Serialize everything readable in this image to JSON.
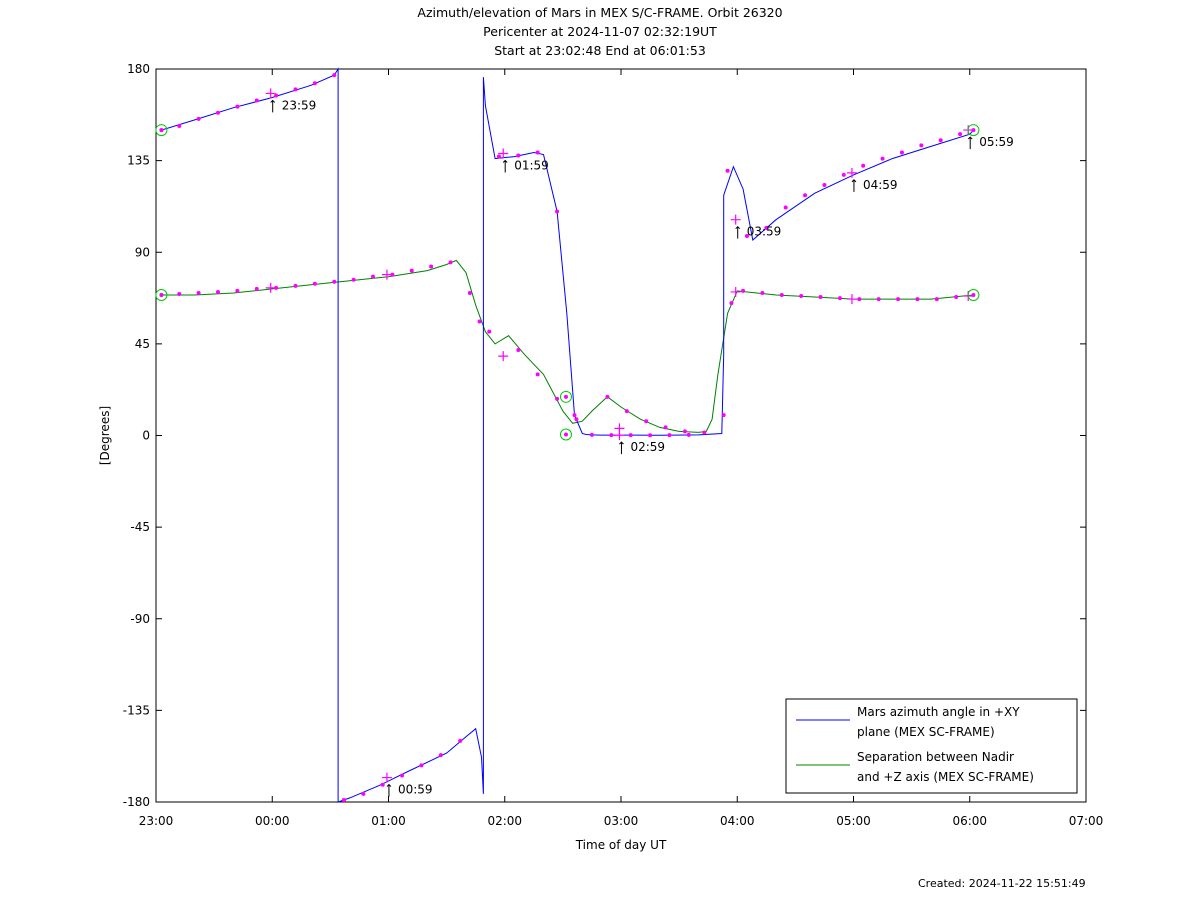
{
  "title_lines": [
    "Azimuth/elevation of Mars in MEX S/C-FRAME.  Orbit 26320",
    "Pericenter at 2024-11-07 02:32:19UT",
    "Start at 23:02:48 End at 06:01:53"
  ],
  "created": "Created: 2024-11-22 15:51:49",
  "chart_data": {
    "type": "line",
    "xlabel": "Time of day UT",
    "ylabel": "[Degrees]",
    "xlim": [
      0,
      480
    ],
    "ylim": [
      -180,
      180
    ],
    "x_ticks": [
      {
        "v": 0,
        "label": "23:00"
      },
      {
        "v": 60,
        "label": "00:00"
      },
      {
        "v": 120,
        "label": "01:00"
      },
      {
        "v": 180,
        "label": "02:00"
      },
      {
        "v": 240,
        "label": "03:00"
      },
      {
        "v": 300,
        "label": "04:00"
      },
      {
        "v": 360,
        "label": "05:00"
      },
      {
        "v": 420,
        "label": "06:00"
      },
      {
        "v": 480,
        "label": "07:00"
      }
    ],
    "y_ticks": [
      {
        "v": 180,
        "label": "180"
      },
      {
        "v": 135,
        "label": "135"
      },
      {
        "v": 90,
        "label": "90"
      },
      {
        "v": 45,
        "label": "45"
      },
      {
        "v": 0,
        "label": "0"
      },
      {
        "v": -45,
        "label": "-45"
      },
      {
        "v": -90,
        "label": "-90"
      },
      {
        "v": -135,
        "label": "-135"
      },
      {
        "v": -180,
        "label": "-180"
      }
    ],
    "series": [
      {
        "name": "Mars azimuth angle in +XY plane (MEX SC-FRAME)",
        "legend_lines": [
          "Mars azimuth angle in +XY",
          "plane (MEX SC-FRAME)"
        ],
        "color": "#0000ff",
        "x": [
          2.8,
          20,
          40,
          60,
          80,
          92,
          94,
          94,
          100,
          115,
          130,
          150,
          160,
          165,
          168,
          169,
          169,
          170,
          175,
          185,
          195,
          200,
          207,
          212,
          216,
          220,
          222,
          225,
          230,
          240,
          260,
          280,
          292,
          293,
          293,
          298,
          303,
          308,
          320,
          340,
          360,
          380,
          400,
          420,
          421.9
        ],
        "y": [
          150,
          155,
          161,
          166,
          172,
          177,
          180,
          -180,
          -178,
          -172,
          -165,
          -156,
          -148,
          -144,
          -158,
          -176,
          176,
          162,
          136,
          137,
          139,
          138,
          110,
          60,
          10,
          1,
          0.5,
          0.3,
          0.2,
          0.2,
          0.1,
          0.3,
          1,
          40,
          118,
          132,
          121,
          96,
          106,
          119,
          128,
          136,
          142,
          148,
          150
        ]
      },
      {
        "name": "Separation between Nadir and +Z axis (MEX SC-FRAME)",
        "legend_lines": [
          "Separation between Nadir",
          "and +Z axis (MEX SC-FRAME)"
        ],
        "color": "#008000",
        "x": [
          2.8,
          20,
          40,
          60,
          80,
          100,
          120,
          140,
          150,
          155,
          160,
          165,
          170,
          175,
          182,
          190,
          200,
          210,
          215,
          220,
          225,
          233,
          240,
          250,
          260,
          270,
          280,
          284,
          287,
          290,
          295,
          300,
          310,
          320,
          340,
          360,
          380,
          400,
          421.9
        ],
        "y": [
          69,
          69,
          70,
          72,
          74,
          76,
          78,
          81,
          84,
          86,
          80,
          64,
          51,
          45,
          49,
          40,
          30,
          12,
          6,
          7,
          12,
          19,
          14,
          8,
          4,
          2,
          1.5,
          2,
          8,
          30,
          60,
          71,
          70,
          69,
          68,
          67,
          67,
          67,
          69
        ]
      }
    ],
    "markers": {
      "azimuth_dots": [
        [
          2.8,
          150
        ],
        [
          12,
          152
        ],
        [
          22,
          155.5
        ],
        [
          32,
          158.5
        ],
        [
          42,
          161.5
        ],
        [
          52,
          164.5
        ],
        [
          62,
          167
        ],
        [
          72,
          170
        ],
        [
          82,
          173
        ],
        [
          92,
          177
        ],
        [
          97,
          -179
        ],
        [
          107,
          -176
        ],
        [
          117,
          -171.5
        ],
        [
          127,
          -167
        ],
        [
          137,
          -162
        ],
        [
          147,
          -157
        ],
        [
          157,
          -150
        ],
        [
          177,
          137
        ],
        [
          187,
          137.5
        ],
        [
          197,
          139
        ],
        [
          207,
          110
        ],
        [
          216,
          10
        ],
        [
          225,
          0.3
        ],
        [
          235,
          0.2
        ],
        [
          245,
          0.2
        ],
        [
          255,
          0.1
        ],
        [
          265,
          0.2
        ],
        [
          275,
          0.3
        ],
        [
          295,
          130
        ],
        [
          305,
          98
        ],
        [
          315,
          102
        ],
        [
          325,
          112
        ],
        [
          335,
          118
        ],
        [
          345,
          123
        ],
        [
          355,
          128
        ],
        [
          365,
          132.5
        ],
        [
          375,
          136
        ],
        [
          385,
          139
        ],
        [
          395,
          142.5
        ],
        [
          405,
          145
        ],
        [
          415,
          148
        ]
      ],
      "azimuth_crosses": [
        [
          59.2,
          168
        ],
        [
          119.2,
          -168
        ],
        [
          179.2,
          138.5
        ],
        [
          239.2,
          0.2
        ],
        [
          299.2,
          106
        ],
        [
          359.2,
          129
        ],
        [
          419.2,
          150
        ]
      ],
      "separation_dots": [
        [
          2.8,
          69
        ],
        [
          12,
          69.5
        ],
        [
          22,
          70
        ],
        [
          32,
          70.5
        ],
        [
          42,
          71
        ],
        [
          52,
          72
        ],
        [
          62,
          72.5
        ],
        [
          72,
          73.5
        ],
        [
          82,
          74.5
        ],
        [
          92,
          75.5
        ],
        [
          102,
          76.5
        ],
        [
          112,
          78
        ],
        [
          122,
          79
        ],
        [
          132,
          81
        ],
        [
          142,
          83
        ],
        [
          152,
          85
        ],
        [
          162,
          70
        ],
        [
          167,
          56
        ],
        [
          172,
          51
        ],
        [
          187,
          42
        ],
        [
          197,
          30
        ],
        [
          207,
          18
        ],
        [
          217,
          8
        ],
        [
          233,
          19
        ],
        [
          243,
          12
        ],
        [
          253,
          7
        ],
        [
          263,
          4
        ],
        [
          273,
          2
        ],
        [
          283,
          1.5
        ],
        [
          293,
          10
        ],
        [
          297,
          65
        ],
        [
          303,
          71
        ],
        [
          313,
          70
        ],
        [
          323,
          69
        ],
        [
          333,
          68.5
        ],
        [
          343,
          68
        ],
        [
          353,
          67.5
        ],
        [
          363,
          67
        ],
        [
          373,
          67
        ],
        [
          383,
          67
        ],
        [
          393,
          67
        ],
        [
          403,
          67
        ],
        [
          413,
          68
        ]
      ],
      "separation_crosses": [
        [
          59.2,
          72.5
        ],
        [
          119.2,
          79
        ],
        [
          179.2,
          39
        ],
        [
          239.2,
          3.5
        ],
        [
          299.2,
          70.5
        ],
        [
          359.2,
          67
        ],
        [
          419.2,
          68.5
        ]
      ],
      "circles": [
        [
          2.8,
          150
        ],
        [
          2.8,
          69
        ],
        [
          421.9,
          150
        ],
        [
          421.9,
          69
        ],
        [
          211.6,
          0.5
        ],
        [
          211.6,
          19
        ]
      ],
      "hour_labels": [
        {
          "x": 59.2,
          "y": 168,
          "label": "23:59"
        },
        {
          "x": 119.2,
          "y": -168,
          "label": "00:59"
        },
        {
          "x": 179.2,
          "y": 138.5,
          "label": "01:59"
        },
        {
          "x": 239.2,
          "y": 0.2,
          "label": "02:59"
        },
        {
          "x": 299.2,
          "y": 106,
          "label": "03:59"
        },
        {
          "x": 359.2,
          "y": 129,
          "label": "04:59"
        },
        {
          "x": 419.2,
          "y": 150,
          "label": "05:59"
        }
      ]
    }
  }
}
